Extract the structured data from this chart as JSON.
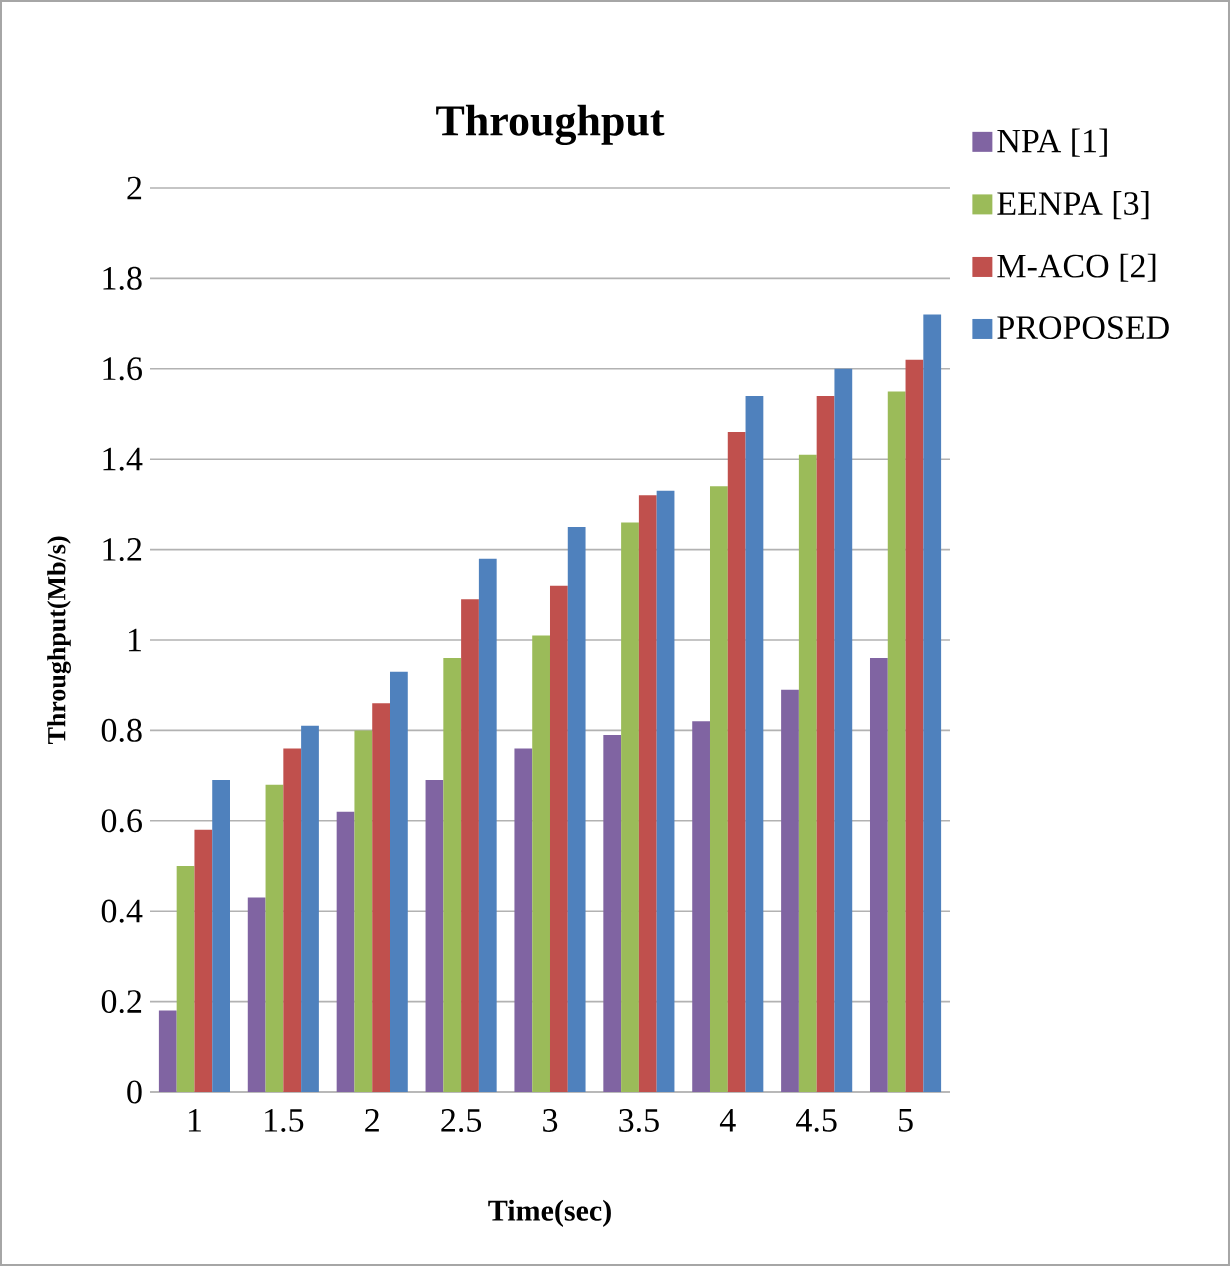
{
  "chart_data": {
    "type": "bar",
    "title": "Throughput",
    "xlabel": "Time(sec)",
    "ylabel": "Throughput(Mb/s)",
    "categories": [
      "1",
      "1.5",
      "2",
      "2.5",
      "3",
      "3.5",
      "4",
      "4.5",
      "5"
    ],
    "series": [
      {
        "name": "NPA [1]",
        "color": "#8064a2",
        "values": [
          0.18,
          0.43,
          0.62,
          0.69,
          0.76,
          0.79,
          0.82,
          0.89,
          0.96
        ]
      },
      {
        "name": "EENPA [3]",
        "color": "#9bbb59",
        "values": [
          0.5,
          0.68,
          0.8,
          0.96,
          1.01,
          1.26,
          1.34,
          1.41,
          1.55
        ]
      },
      {
        "name": "M-ACO [2]",
        "color": "#c0504d",
        "values": [
          0.58,
          0.76,
          0.86,
          1.09,
          1.12,
          1.32,
          1.46,
          1.54,
          1.62
        ]
      },
      {
        "name": "PROPOSED",
        "color": "#4f81bd",
        "values": [
          0.69,
          0.81,
          0.93,
          1.18,
          1.25,
          1.33,
          1.54,
          1.6,
          1.72
        ]
      }
    ],
    "ylim": [
      0,
      2
    ],
    "yticks": [
      0,
      0.2,
      0.4,
      0.6,
      0.8,
      1,
      1.2,
      1.4,
      1.6,
      1.8,
      2
    ],
    "grid": "y",
    "legend": "top right"
  }
}
